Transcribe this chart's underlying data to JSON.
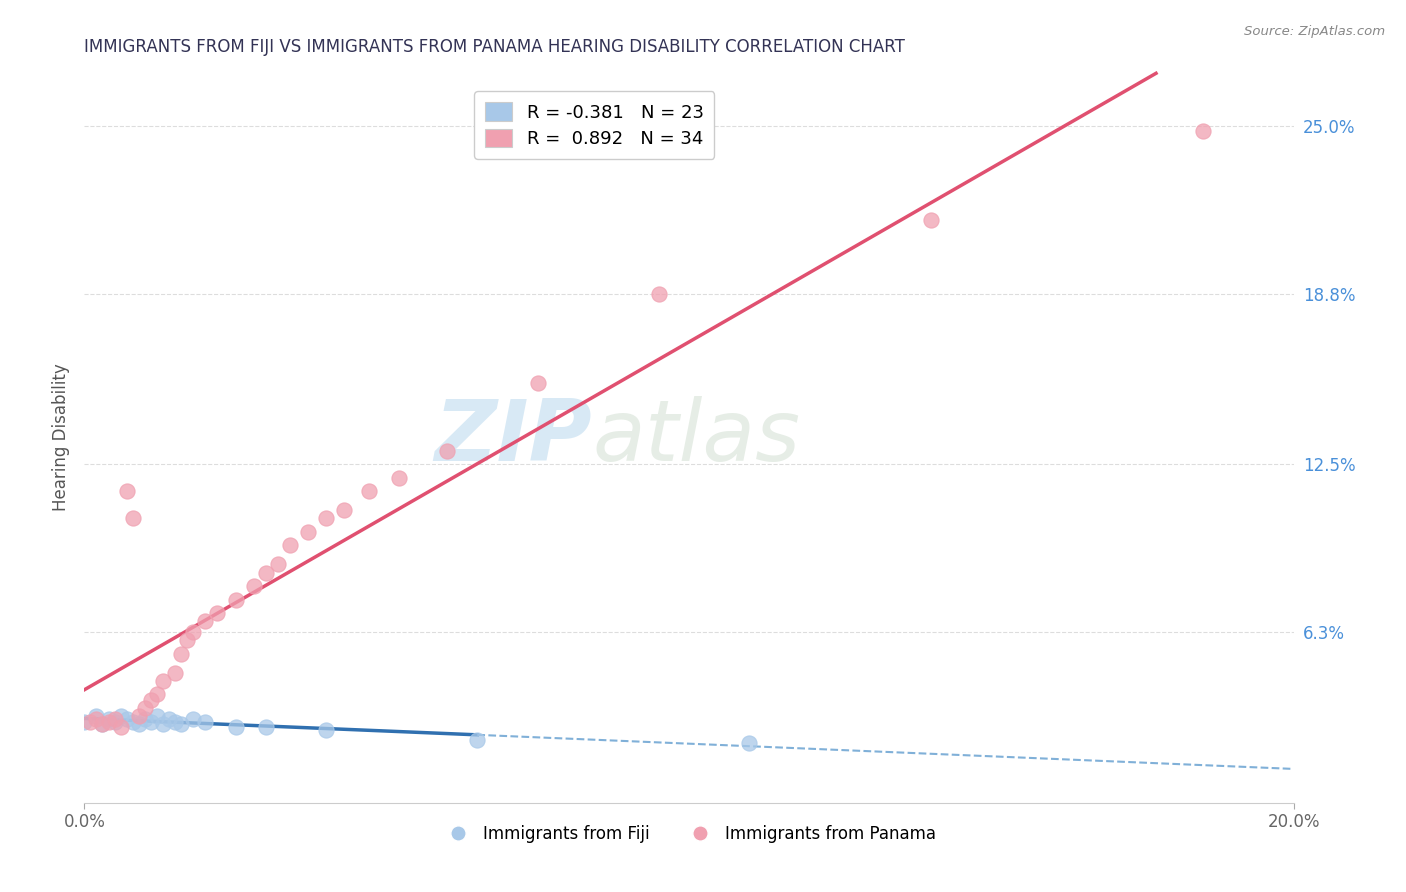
{
  "title": "IMMIGRANTS FROM FIJI VS IMMIGRANTS FROM PANAMA HEARING DISABILITY CORRELATION CHART",
  "source": "Source: ZipAtlas.com",
  "ylabel": "Hearing Disability",
  "watermark_zip": "ZIP",
  "watermark_atlas": "atlas",
  "xlim": [
    0.0,
    0.2
  ],
  "ylim": [
    0.0,
    0.27
  ],
  "ytick_labels": [
    "6.3%",
    "12.5%",
    "18.8%",
    "25.0%"
  ],
  "ytick_values": [
    0.063,
    0.125,
    0.188,
    0.25
  ],
  "legend_fiji_r": "R = -0.381",
  "legend_fiji_n": "N = 23",
  "legend_panama_r": "R =  0.892",
  "legend_panama_n": "N = 34",
  "fiji_scatter_color": "#A8C8E8",
  "panama_scatter_color": "#F0A0B0",
  "fiji_line_color": "#3070B0",
  "fiji_line_dash_color": "#80B0D8",
  "panama_line_color": "#E05070",
  "background_color": "#FFFFFF",
  "grid_color": "#DDDDDD",
  "title_color": "#333355",
  "fiji_points_x": [
    0.0,
    0.002,
    0.003,
    0.004,
    0.005,
    0.006,
    0.007,
    0.008,
    0.009,
    0.01,
    0.011,
    0.012,
    0.013,
    0.014,
    0.015,
    0.016,
    0.018,
    0.02,
    0.025,
    0.03,
    0.04,
    0.065,
    0.11
  ],
  "fiji_points_y": [
    0.03,
    0.032,
    0.029,
    0.031,
    0.03,
    0.032,
    0.031,
    0.03,
    0.029,
    0.031,
    0.03,
    0.032,
    0.029,
    0.031,
    0.03,
    0.029,
    0.031,
    0.03,
    0.028,
    0.028,
    0.027,
    0.023,
    0.022
  ],
  "panama_points_x": [
    0.001,
    0.002,
    0.003,
    0.004,
    0.005,
    0.006,
    0.007,
    0.008,
    0.009,
    0.01,
    0.011,
    0.012,
    0.013,
    0.015,
    0.016,
    0.017,
    0.018,
    0.02,
    0.022,
    0.025,
    0.028,
    0.03,
    0.032,
    0.034,
    0.037,
    0.04,
    0.043,
    0.047,
    0.052,
    0.06,
    0.075,
    0.095,
    0.14,
    0.185
  ],
  "panama_points_y": [
    0.03,
    0.031,
    0.029,
    0.03,
    0.031,
    0.028,
    0.115,
    0.105,
    0.032,
    0.035,
    0.038,
    0.04,
    0.045,
    0.048,
    0.055,
    0.06,
    0.063,
    0.067,
    0.07,
    0.075,
    0.08,
    0.085,
    0.088,
    0.095,
    0.1,
    0.105,
    0.108,
    0.115,
    0.12,
    0.13,
    0.155,
    0.188,
    0.215,
    0.248
  ]
}
